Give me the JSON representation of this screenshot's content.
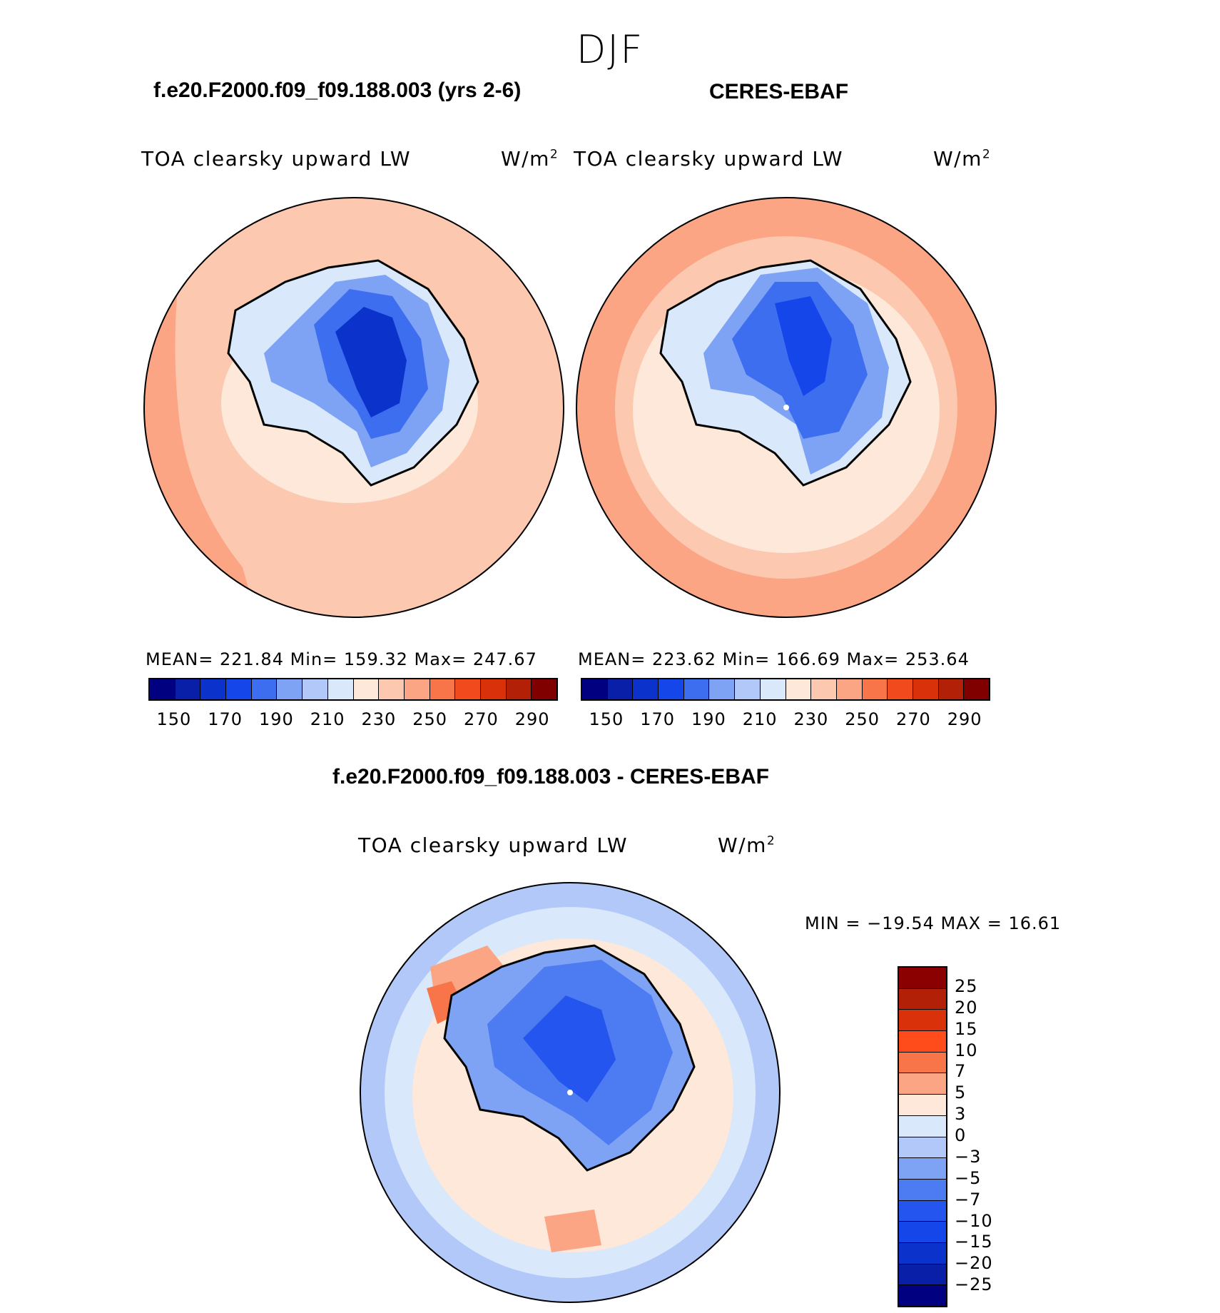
{
  "season": "DJF",
  "panels": [
    {
      "title": "f.e20.F2000.f09_f09.188.003 (yrs 2-6)",
      "variable": "TOA clearsky upward LW",
      "units_base": "W/m",
      "units_exp": "2",
      "stats": "MEAN= 221.84   Min= 159.32   Max= 247.67"
    },
    {
      "title": "CERES-EBAF",
      "variable": "TOA clearsky upward LW",
      "units_base": "W/m",
      "units_exp": "2",
      "stats": "MEAN= 223.62   Min= 166.69   Max= 253.64"
    },
    {
      "title": "f.e20.F2000.f09_f09.188.003 - CERES-EBAF",
      "variable": "TOA clearsky upward LW",
      "units_base": "W/m",
      "units_exp": "2",
      "stats": "MIN = −19.54 MAX =   16.61"
    }
  ],
  "abs_colorbar": {
    "colors": [
      "#000080",
      "#0a1fa8",
      "#0b33cc",
      "#1446ea",
      "#3d6ef0",
      "#7ea3f5",
      "#b2c8f8",
      "#d9e8fb",
      "#fde8d9",
      "#fcc9b0",
      "#fba585",
      "#f77549",
      "#f04a1d",
      "#d9320b",
      "#b22007",
      "#800000"
    ],
    "ticks": [
      "150",
      "170",
      "190",
      "210",
      "230",
      "250",
      "270",
      "290"
    ]
  },
  "diff_colorbar": {
    "colors": [
      "#8b0000",
      "#b22007",
      "#d9320b",
      "#ff4c1a",
      "#f77549",
      "#fba585",
      "#fde8d9",
      "#d9e8fb",
      "#b2c8f8",
      "#7ea3f5",
      "#4d7cf2",
      "#2455ee",
      "#1446ea",
      "#0b33cc",
      "#0a1fa8",
      "#000080"
    ],
    "ticks": [
      "25",
      "20",
      "15",
      "10",
      "7",
      "5",
      "3",
      "0",
      "−3",
      "−5",
      "−7",
      "−10",
      "−15",
      "−20",
      "−25"
    ]
  }
}
